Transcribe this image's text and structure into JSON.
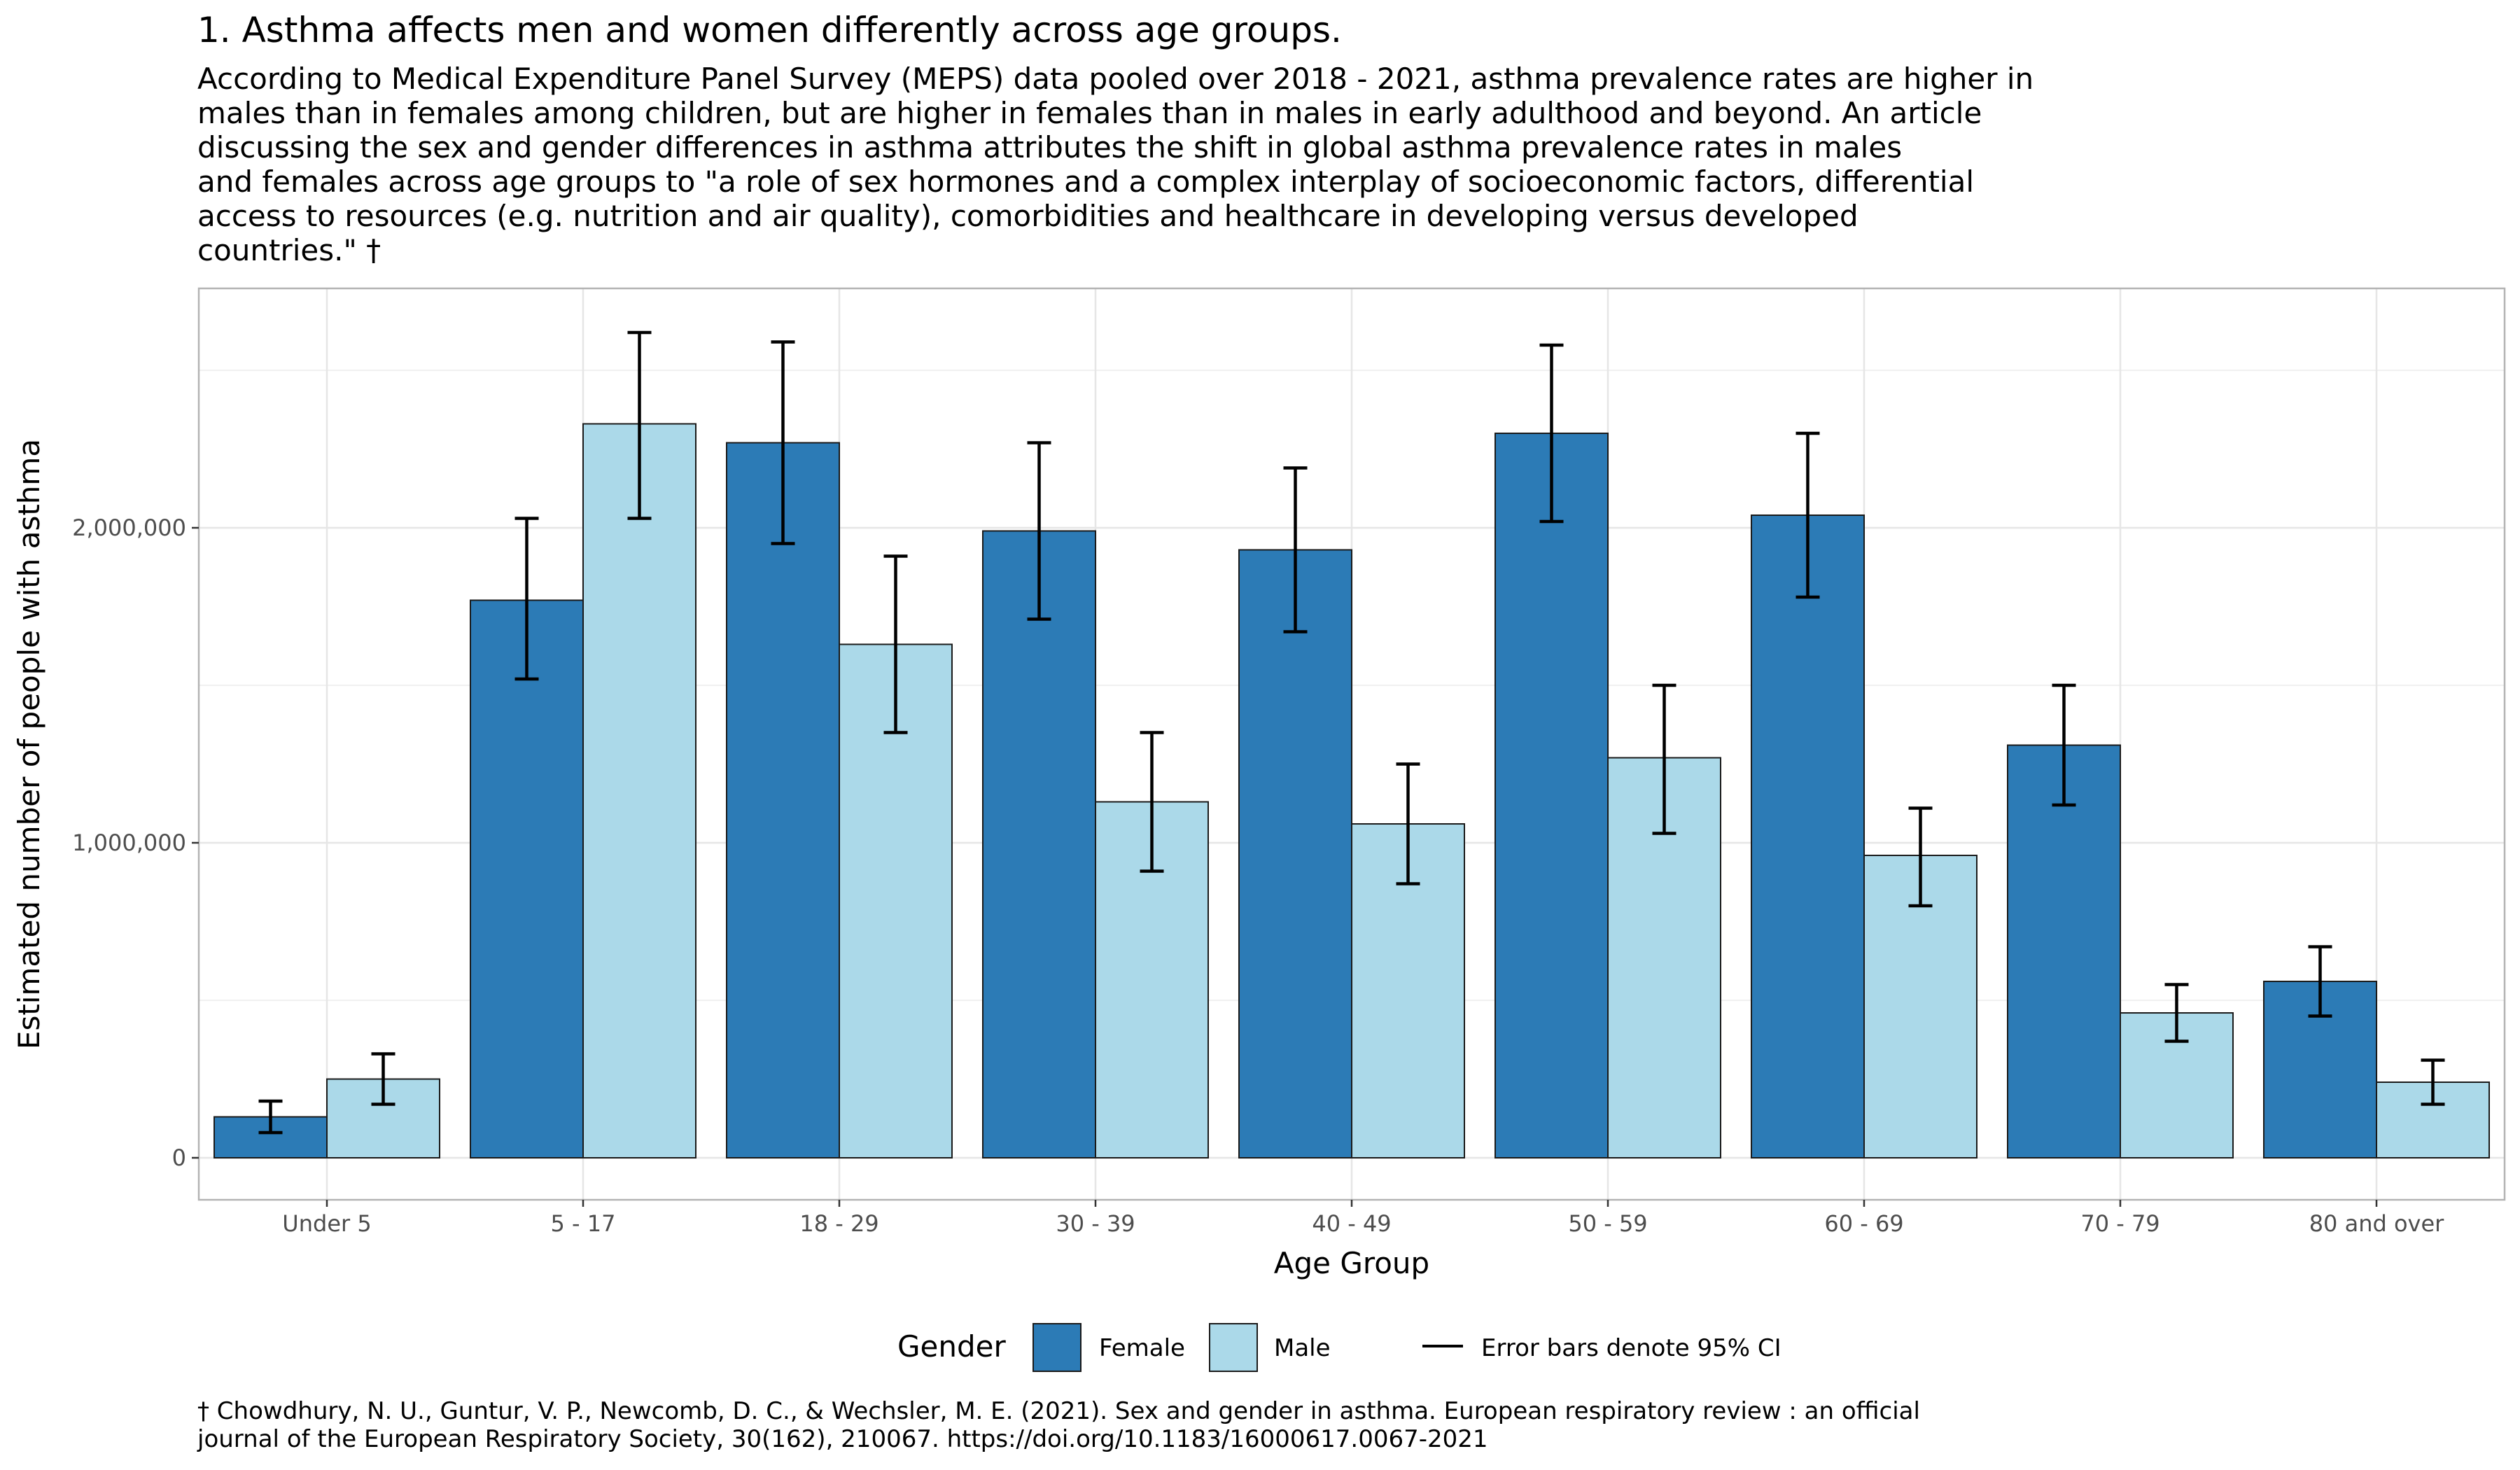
{
  "title": "1. Asthma affects men and women differently across age groups.",
  "subtitle_lines": [
    "According to Medical Expenditure Panel Survey (MEPS) data pooled over 2018 - 2021, asthma prevalence rates are higher in",
    "males than in females among children, but are higher in females than in males in early adulthood and beyond. An article",
    "discussing the sex and gender differences in asthma attributes the shift in global asthma prevalence rates in males",
    "and females across age groups to \"a role of sex hormones and a complex interplay of socioeconomic factors, differential",
    "access to resources (e.g. nutrition and air quality), comorbidities and healthcare in developing versus developed",
    "countries.\" †"
  ],
  "caption_lines": [
    "† Chowdhury, N. U., Guntur, V. P., Newcomb, D. C., & Wechsler, M. E. (2021). Sex and gender in asthma. European respiratory review : an official",
    "journal of the European Respiratory Society, 30(162), 210067. https://doi.org/10.1183/16000617.0067-2021"
  ],
  "legend": {
    "title": "Gender",
    "error_label": "Error bars denote 95% CI"
  },
  "colors": {
    "Female": "#2c7bb6",
    "Male": "#abd9e9",
    "bar_outline": "#1a1a1a",
    "grid": "#e6e6e6",
    "panel_border": "#b3b3b3",
    "error_bar": "#000000"
  },
  "chart_data": {
    "type": "bar",
    "title": "1. Asthma affects men and women differently across age groups.",
    "xlabel": "Age Group",
    "ylabel": "Estimated number of people with asthma",
    "categories": [
      "Under 5",
      "5 - 17",
      "18 - 29",
      "30 - 39",
      "40 - 49",
      "50 - 59",
      "60 - 69",
      "70 - 79",
      "80 and over"
    ],
    "ylim": [
      -130000,
      2760000
    ],
    "yticks": [
      0,
      1000000,
      2000000
    ],
    "ytick_labels": [
      "0",
      "1,000,000",
      "2,000,000"
    ],
    "series": [
      {
        "name": "Female",
        "values": [
          130000,
          1770000,
          2270000,
          1990000,
          1930000,
          2300000,
          2040000,
          1310000,
          560000
        ],
        "ci_low": [
          80000,
          1520000,
          1950000,
          1710000,
          1670000,
          2020000,
          1780000,
          1120000,
          450000
        ],
        "ci_high": [
          180000,
          2030000,
          2590000,
          2270000,
          2190000,
          2580000,
          2300000,
          1500000,
          670000
        ]
      },
      {
        "name": "Male",
        "values": [
          250000,
          2330000,
          1630000,
          1130000,
          1060000,
          1270000,
          960000,
          460000,
          240000
        ],
        "ci_low": [
          170000,
          2030000,
          1350000,
          910000,
          870000,
          1030000,
          800000,
          370000,
          170000
        ],
        "ci_high": [
          330000,
          2620000,
          1910000,
          1350000,
          1250000,
          1500000,
          1110000,
          550000,
          310000
        ]
      }
    ],
    "error_bars": "95% CI",
    "grid": true,
    "legend_position": "bottom"
  }
}
